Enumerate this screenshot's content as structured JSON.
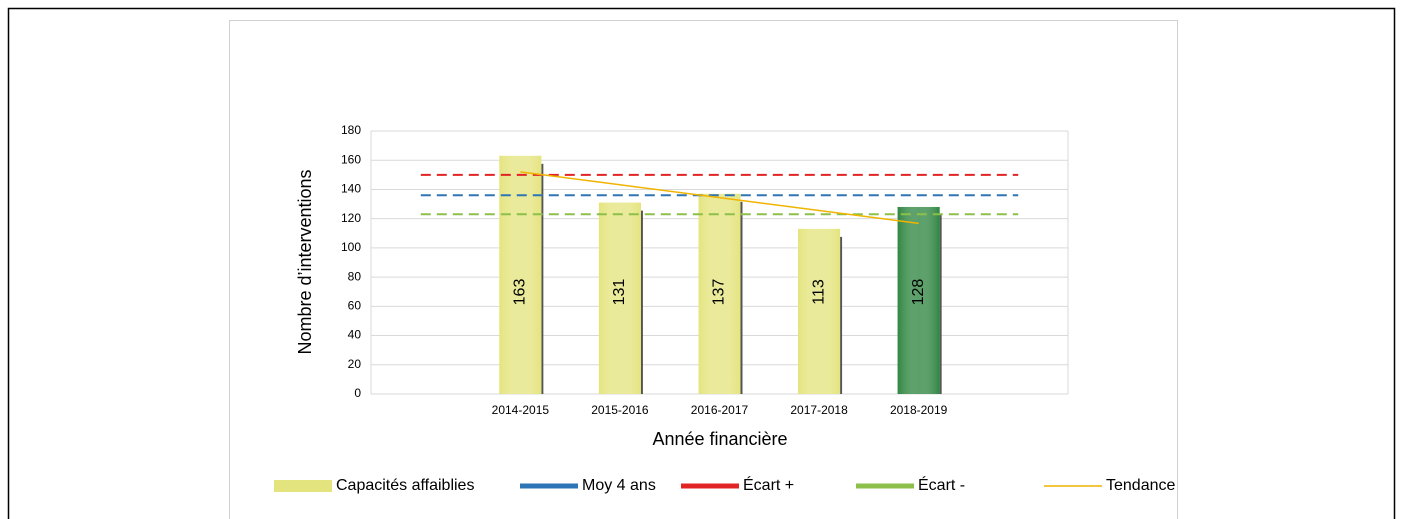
{
  "chart_data": {
    "type": "bar",
    "y_label": "Nombre  d’interventions",
    "x_label": "Année financière",
    "categories": [
      null,
      "2014-2015",
      "2015-2016",
      "2016-2017",
      "2017-2018",
      "2018-2019",
      null
    ],
    "series": [
      {
        "name": "Capacités affaiblies",
        "type": "bar",
        "color": "#e4e47e",
        "colors": [
          null,
          "#e4e47e",
          "#e4e47e",
          "#e4e47e",
          "#e4e47e",
          "#2e8540",
          null
        ],
        "label_colors": [
          null,
          "#000000",
          "#000000",
          "#000000",
          "#000000",
          "#ffffff",
          null
        ],
        "values": [
          null,
          163,
          131,
          137,
          113,
          128,
          null
        ]
      },
      {
        "name": "Moy 4 ans",
        "type": "line",
        "dashed": true,
        "color": "#2e75b6",
        "values": [
          136,
          136,
          136,
          136,
          136,
          136,
          136
        ]
      },
      {
        "name": "Écart +",
        "type": "line",
        "dashed": true,
        "color": "#e02424",
        "values": [
          150,
          150,
          150,
          150,
          150,
          150,
          150
        ]
      },
      {
        "name": "Écart -",
        "type": "line",
        "dashed": true,
        "color": "#8cc04a",
        "values": [
          123,
          123,
          123,
          123,
          123,
          123,
          123
        ]
      },
      {
        "name": "Tendance",
        "type": "line",
        "dashed": false,
        "color": "#f0b400",
        "values": [
          null,
          152,
          143.2,
          134.4,
          125.6,
          116.8,
          null
        ]
      }
    ],
    "ylim": [
      0,
      180
    ],
    "yticks": [
      0,
      20,
      40,
      60,
      80,
      100,
      120,
      140,
      160,
      180
    ],
    "grid": true,
    "legend": "bottom"
  }
}
